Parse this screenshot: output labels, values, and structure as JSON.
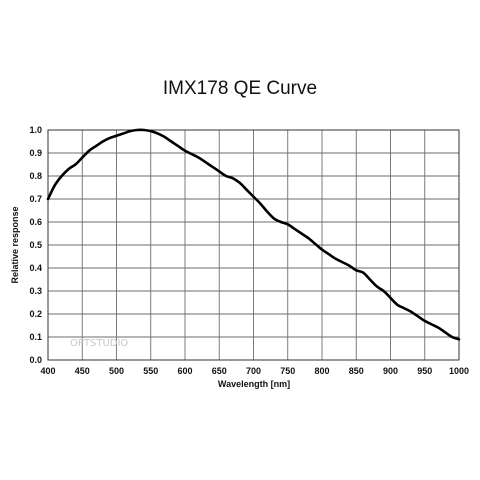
{
  "chart_data": {
    "type": "line",
    "title": "IMX178 QE Curve",
    "xlabel": "Wavelength [nm]",
    "ylabel": "Relative response",
    "xlim": [
      400,
      1000
    ],
    "ylim": [
      0.0,
      1.0
    ],
    "x_ticks": [
      "400",
      "450",
      "500",
      "550",
      "600",
      "650",
      "700",
      "750",
      "800",
      "850",
      "900",
      "950",
      "1000"
    ],
    "y_ticks": [
      "0.0",
      "0.1",
      "0.2",
      "0.3",
      "0.4",
      "0.5",
      "0.6",
      "0.7",
      "0.8",
      "0.9",
      "1.0"
    ],
    "grid": true,
    "line_color": "#000000",
    "series": [
      {
        "x": [
          400,
          410,
          420,
          430,
          440,
          450,
          460,
          470,
          480,
          490,
          500,
          510,
          520,
          530,
          540,
          550,
          560,
          570,
          580,
          590,
          600,
          610,
          620,
          630,
          640,
          650,
          660,
          670,
          680,
          690,
          700,
          710,
          720,
          730,
          740,
          750,
          760,
          770,
          780,
          790,
          800,
          810,
          820,
          830,
          840,
          850,
          860,
          870,
          880,
          890,
          900,
          910,
          920,
          930,
          940,
          950,
          960,
          970,
          980,
          990,
          1000
        ],
        "values": [
          0.7,
          0.76,
          0.8,
          0.83,
          0.85,
          0.88,
          0.91,
          0.93,
          0.95,
          0.965,
          0.975,
          0.985,
          0.995,
          1.0,
          1.0,
          0.995,
          0.985,
          0.97,
          0.95,
          0.93,
          0.91,
          0.895,
          0.88,
          0.86,
          0.84,
          0.82,
          0.8,
          0.79,
          0.77,
          0.74,
          0.71,
          0.68,
          0.645,
          0.615,
          0.6,
          0.59,
          0.57,
          0.55,
          0.53,
          0.505,
          0.48,
          0.46,
          0.44,
          0.425,
          0.41,
          0.39,
          0.38,
          0.35,
          0.32,
          0.3,
          0.27,
          0.24,
          0.225,
          0.21,
          0.19,
          0.17,
          0.155,
          0.14,
          0.12,
          0.1,
          0.09
        ]
      }
    ]
  },
  "watermark": "OPTSTUDIO"
}
